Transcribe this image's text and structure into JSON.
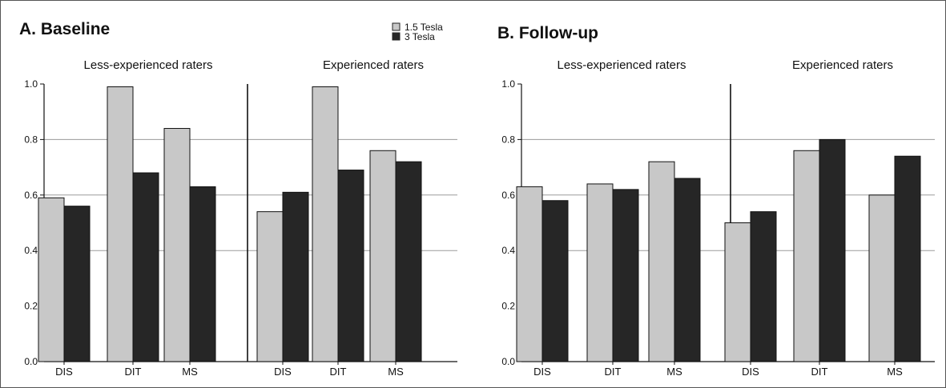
{
  "chart_data": [
    {
      "type": "bar",
      "title": "A. Baseline",
      "groups": [
        "Less-experienced raters",
        "Experienced raters"
      ],
      "categories": [
        "DIS",
        "DIT",
        "MS",
        "DIS",
        "DIT",
        "MS"
      ],
      "series": [
        {
          "name": "1.5 Tesla",
          "color": "#c8c8c8",
          "values": [
            0.59,
            0.99,
            0.84,
            0.54,
            0.99,
            0.76
          ]
        },
        {
          "name": "3 Tesla",
          "color": "#262626",
          "values": [
            0.56,
            0.68,
            0.63,
            0.61,
            0.69,
            0.72
          ]
        }
      ],
      "ylim": [
        0,
        1
      ],
      "yticks": [
        "0.0",
        "0.2",
        "0.4",
        "0.6",
        "0.8",
        "1.0"
      ],
      "gridlines": [
        0.4,
        0.6,
        0.8
      ],
      "legend": "top-right"
    },
    {
      "type": "bar",
      "title": "B. Follow-up",
      "groups": [
        "Less-experienced raters",
        "Experienced raters"
      ],
      "categories": [
        "DIS",
        "DIT",
        "MS",
        "DIS",
        "DIT",
        "MS"
      ],
      "series": [
        {
          "name": "1.5 Tesla",
          "color": "#c8c8c8",
          "values": [
            0.63,
            0.64,
            0.72,
            0.5,
            0.76,
            0.6
          ]
        },
        {
          "name": "3 Tesla",
          "color": "#262626",
          "values": [
            0.58,
            0.62,
            0.66,
            0.54,
            0.8,
            0.74
          ]
        }
      ],
      "ylim": [
        0,
        1
      ],
      "yticks": [
        "0.0",
        "0.2",
        "0.4",
        "0.6",
        "0.8",
        "1.0"
      ],
      "gridlines": [
        0.4,
        0.6,
        0.8
      ]
    }
  ]
}
